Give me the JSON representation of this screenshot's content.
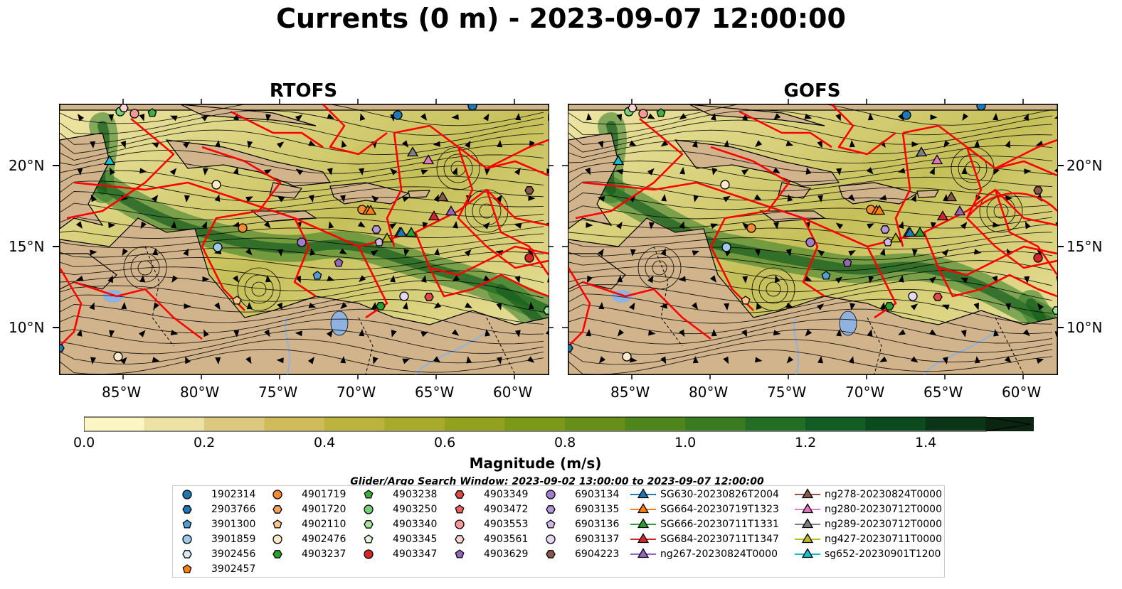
{
  "title": "Currents (0 m) - 2023-09-07 12:00:00",
  "panels": [
    {
      "title": "RTOFS"
    },
    {
      "title": "GOFS"
    }
  ],
  "axes": {
    "lon_ticks": [
      "85°W",
      "80°W",
      "75°W",
      "70°W",
      "65°W",
      "60°W"
    ],
    "lat_ticks": [
      "20°N",
      "15°N",
      "10°N"
    ]
  },
  "colorbar": {
    "label": "Magnitude (m/s)",
    "ticks": [
      "0.0",
      "0.2",
      "0.4",
      "0.6",
      "0.8",
      "1.0",
      "1.2",
      "1.4"
    ],
    "range": [
      0.0,
      1.5
    ],
    "colors": [
      "#fcf6c4",
      "#ede1a3",
      "#dcc97f",
      "#cfbb5a",
      "#bcb23e",
      "#a7aa2b",
      "#92a11e",
      "#7c9818",
      "#668f19",
      "#4f861c",
      "#3a7b21",
      "#236e25",
      "#125d24",
      "#0b4a1d",
      "#0a3516",
      "#0b2510"
    ]
  },
  "search_window": "Glider/Argo Search Window: 2023-09-02 13:00:00 to 2023-09-07 12:00:00",
  "legend": [
    {
      "label": "1902314",
      "marker": "circle",
      "color": "#1f77b4"
    },
    {
      "label": "2903766",
      "marker": "hexagon",
      "color": "#1f77b4"
    },
    {
      "label": "3901300",
      "marker": "pentagon",
      "color": "#4d9fd6"
    },
    {
      "label": "3901859",
      "marker": "circle",
      "color": "#9ecae9"
    },
    {
      "label": "3902456",
      "marker": "hexagon",
      "color": "#d8ecf8"
    },
    {
      "label": "3902457",
      "marker": "pentagon",
      "color": "#ff7f0e"
    },
    {
      "label": "4901719",
      "marker": "circle",
      "color": "#f68b34"
    },
    {
      "label": "4901720",
      "marker": "hexagon",
      "color": "#f7a25e"
    },
    {
      "label": "4902110",
      "marker": "pentagon",
      "color": "#fdc68a"
    },
    {
      "label": "4902476",
      "marker": "circle",
      "color": "#fde9cc"
    },
    {
      "label": "4903237",
      "marker": "hexagon",
      "color": "#2ca02c"
    },
    {
      "label": "4903238",
      "marker": "pentagon",
      "color": "#3fae3f"
    },
    {
      "label": "4903250",
      "marker": "circle",
      "color": "#76d076"
    },
    {
      "label": "4903340",
      "marker": "hexagon",
      "color": "#a7e2a0"
    },
    {
      "label": "4903345",
      "marker": "pentagon",
      "color": "#e1f6d9"
    },
    {
      "label": "4903347",
      "marker": "circle",
      "color": "#d62728"
    },
    {
      "label": "4903349",
      "marker": "hexagon",
      "color": "#dd4a43"
    },
    {
      "label": "4903472",
      "marker": "pentagon",
      "color": "#e8625f"
    },
    {
      "label": "4903553",
      "marker": "circle",
      "color": "#f4989a"
    },
    {
      "label": "4903561",
      "marker": "hexagon",
      "color": "#fbd3d3"
    },
    {
      "label": "4903629",
      "marker": "pentagon",
      "color": "#9467bd"
    },
    {
      "label": "6903134",
      "marker": "circle",
      "color": "#a07ccc"
    },
    {
      "label": "6903135",
      "marker": "hexagon",
      "color": "#b596d8"
    },
    {
      "label": "6903136",
      "marker": "pentagon",
      "color": "#cfb7e6"
    },
    {
      "label": "6903137",
      "marker": "circle",
      "color": "#e6d8f3"
    },
    {
      "label": "6904223",
      "marker": "hexagon",
      "color": "#8c564b"
    },
    {
      "label": "SG630-20230826T2004",
      "marker": "triangle",
      "color": "#1f77b4"
    },
    {
      "label": "SG664-20230719T1323",
      "marker": "triangle",
      "color": "#ff7f0e"
    },
    {
      "label": "SG666-20230711T1331",
      "marker": "triangle",
      "color": "#2ca02c"
    },
    {
      "label": "SG684-20230711T1347",
      "marker": "triangle",
      "color": "#d62728"
    },
    {
      "label": "ng267-20230824T0000",
      "marker": "triangle",
      "color": "#9467bd"
    },
    {
      "label": "ng278-20230824T0000",
      "marker": "triangle",
      "color": "#8c564b"
    },
    {
      "label": "ng280-20230712T0000",
      "marker": "triangle",
      "color": "#e377c2"
    },
    {
      "label": "ng289-20230712T0000",
      "marker": "triangle",
      "color": "#7f7f7f"
    },
    {
      "label": "ng427-20230711T0000",
      "marker": "triangle",
      "color": "#bcbd22"
    },
    {
      "label": "sg652-20230901T1200",
      "marker": "triangle",
      "color": "#17becf"
    }
  ],
  "map_colors": {
    "water_low": "#efe6a6",
    "water_mid": "#c6c05a",
    "jet": "#2f7a27",
    "jet_core": "#185c1f",
    "land": "#d2b48c",
    "lake": "#8fb2df",
    "eez": "#ff0000",
    "streamline": "#000000"
  }
}
